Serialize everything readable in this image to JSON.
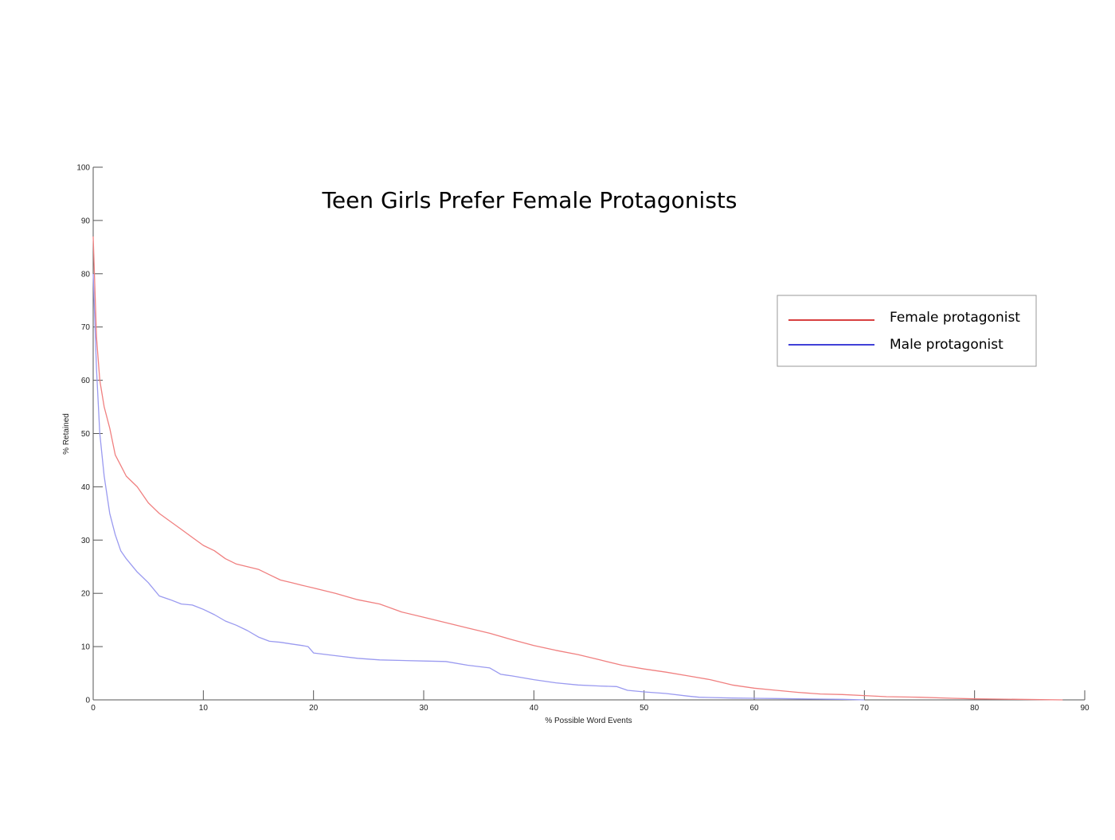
{
  "chart_data": {
    "type": "line",
    "title": "Teen Girls Prefer Female Protagonists",
    "xlabel": "% Possible Word Events",
    "ylabel": "% Retained",
    "xlim": [
      0,
      90
    ],
    "ylim": [
      0,
      100
    ],
    "xticks": [
      0,
      10,
      20,
      30,
      40,
      50,
      60,
      70,
      80,
      90
    ],
    "yticks": [
      0,
      10,
      20,
      30,
      40,
      50,
      60,
      70,
      80,
      90,
      100
    ],
    "grid": false,
    "legend_position": "top-right",
    "series": [
      {
        "name": "Female protagonist",
        "color": "#f08080",
        "legend_color": "#cc0000",
        "x": [
          0,
          0.3,
          0.6,
          1,
          1.5,
          2,
          2.5,
          3,
          4,
          5,
          6,
          7,
          8,
          9,
          10,
          11,
          12,
          13,
          14,
          15,
          16,
          17,
          18,
          19,
          20,
          22,
          24,
          26,
          28,
          30,
          32,
          34,
          36,
          38,
          40,
          42,
          44,
          46,
          48,
          50,
          52,
          54,
          56,
          58,
          60,
          62,
          64,
          66,
          68,
          70,
          72,
          75,
          78,
          80,
          82,
          84,
          86,
          88
        ],
        "values": [
          87,
          68,
          60,
          55,
          51,
          46,
          44,
          42,
          40,
          37,
          35,
          33.5,
          32,
          30.5,
          29,
          28,
          26.5,
          25.5,
          25,
          24.5,
          23.5,
          22.5,
          22,
          21.5,
          21,
          20,
          18.8,
          18,
          16.5,
          15.5,
          14.5,
          13.5,
          12.5,
          11.3,
          10.2,
          9.3,
          8.5,
          7.5,
          6.5,
          5.8,
          5.2,
          4.5,
          3.8,
          2.8,
          2.2,
          1.8,
          1.4,
          1.1,
          1.0,
          0.8,
          0.6,
          0.5,
          0.3,
          0.2,
          0.15,
          0.1,
          0.05,
          0
        ]
      },
      {
        "name": "Male protagonist",
        "color": "#9a9af0",
        "legend_color": "#0000cc",
        "x": [
          0,
          0.3,
          0.6,
          1,
          1.5,
          2,
          2.5,
          3,
          4,
          5,
          6,
          7,
          8,
          9,
          10,
          11,
          12,
          13,
          14,
          15,
          16,
          17,
          18,
          19,
          19.5,
          20,
          22,
          24,
          26,
          28,
          30,
          32,
          34,
          36,
          37,
          38,
          40,
          42,
          44,
          46,
          47.5,
          48.5,
          50,
          52,
          54,
          55,
          58,
          60,
          62,
          64,
          66,
          68,
          70
        ],
        "values": [
          80,
          62,
          50,
          42,
          35,
          31,
          28,
          26.5,
          24,
          22,
          19.5,
          18.8,
          18,
          17.8,
          17,
          16,
          14.8,
          14,
          13,
          11.8,
          11,
          10.8,
          10.5,
          10.2,
          10,
          8.8,
          8.3,
          7.8,
          7.5,
          7.4,
          7.3,
          7.2,
          6.5,
          6,
          4.8,
          4.5,
          3.8,
          3.2,
          2.8,
          2.6,
          2.5,
          1.8,
          1.5,
          1.2,
          0.7,
          0.5,
          0.35,
          0.3,
          0.25,
          0.2,
          0.15,
          0.1,
          0
        ]
      }
    ]
  }
}
